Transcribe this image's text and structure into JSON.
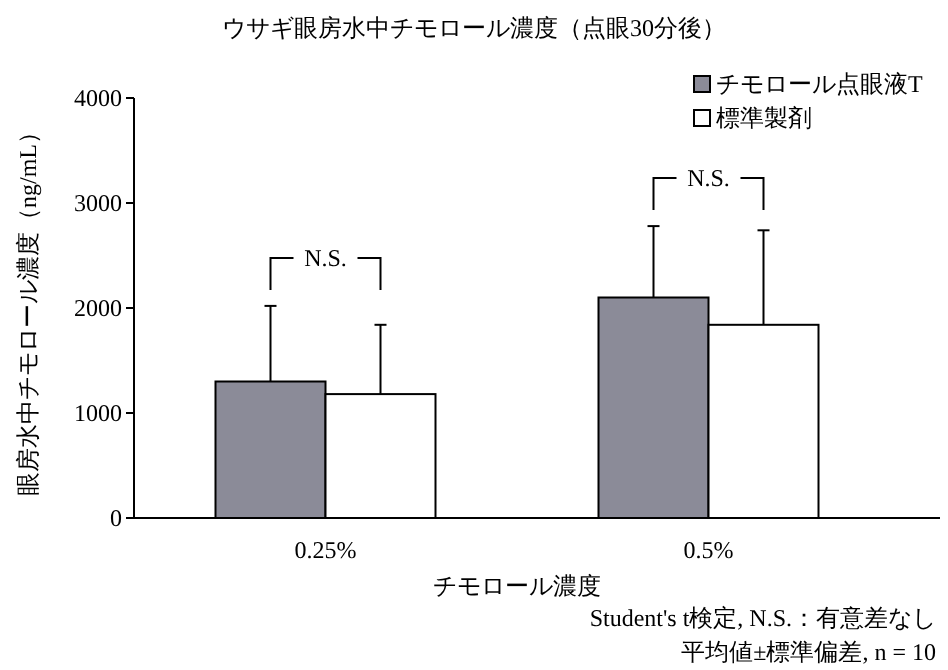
{
  "chart_data": {
    "type": "bar",
    "title": "ウサギ眼房水中チモロール濃度（点眼30分後）",
    "xlabel": "チモロール濃度",
    "ylabel": "眼房水中チモロール濃度（ng/mL）",
    "categories": [
      "0.25%",
      "0.5%"
    ],
    "series": [
      {
        "name": "チモロール点眼液T",
        "color": "#8b8b98",
        "values": [
          1300,
          2100
        ],
        "errors": [
          [
            1300,
            2020
          ],
          [
            2100,
            2780
          ]
        ]
      },
      {
        "name": "標準製剤",
        "color": "#ffffff",
        "values": [
          1180,
          1840
        ],
        "errors": [
          [
            1180,
            1840
          ],
          [
            1840,
            2740
          ]
        ]
      }
    ],
    "ylim": [
      0,
      4000
    ],
    "yticks": [
      0,
      1000,
      2000,
      3000,
      4000
    ],
    "legend": "top right",
    "annotations": [
      "N.S.",
      "N.S.",
      "Student's t検定, N.S.：有意差なし",
      "平均値±標準偏差, n = 10"
    ]
  }
}
